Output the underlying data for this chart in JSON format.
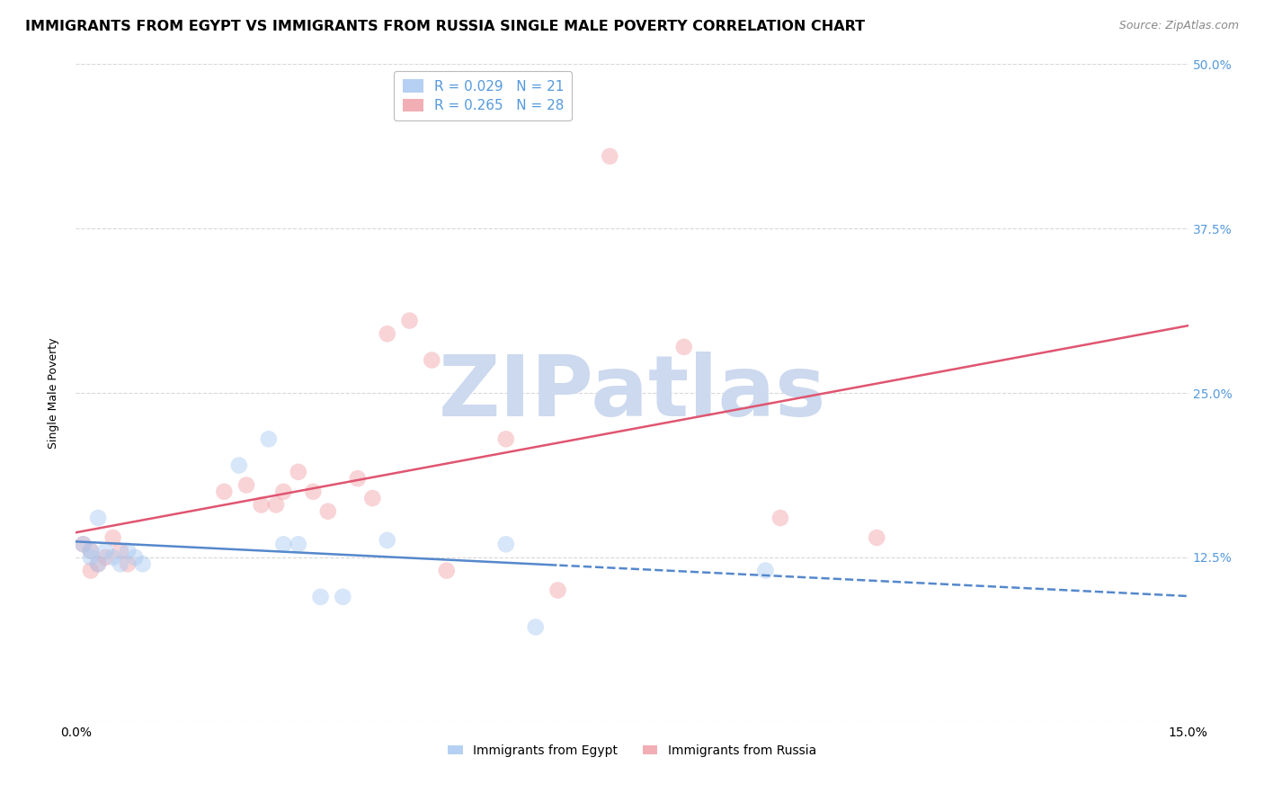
{
  "title": "IMMIGRANTS FROM EGYPT VS IMMIGRANTS FROM RUSSIA SINGLE MALE POVERTY CORRELATION CHART",
  "source": "Source: ZipAtlas.com",
  "ylabel": "Single Male Poverty",
  "xlim": [
    0.0,
    0.15
  ],
  "ylim": [
    0.0,
    0.5
  ],
  "yticks": [
    0.0,
    0.125,
    0.25,
    0.375,
    0.5
  ],
  "yticklabels": [
    "",
    "12.5%",
    "25.0%",
    "37.5%",
    "50.0%"
  ],
  "egypt_color": "#a8c8f0",
  "russia_color": "#f0a0a8",
  "egypt_R": 0.029,
  "egypt_N": 21,
  "russia_R": 0.265,
  "russia_N": 28,
  "egypt_x": [
    0.001,
    0.002,
    0.002,
    0.003,
    0.003,
    0.004,
    0.005,
    0.006,
    0.007,
    0.008,
    0.009,
    0.022,
    0.026,
    0.028,
    0.03,
    0.033,
    0.036,
    0.042,
    0.058,
    0.062,
    0.093
  ],
  "egypt_y": [
    0.135,
    0.13,
    0.125,
    0.12,
    0.155,
    0.13,
    0.125,
    0.12,
    0.13,
    0.125,
    0.12,
    0.195,
    0.215,
    0.135,
    0.135,
    0.095,
    0.095,
    0.138,
    0.135,
    0.072,
    0.115
  ],
  "russia_x": [
    0.001,
    0.002,
    0.002,
    0.003,
    0.004,
    0.005,
    0.006,
    0.007,
    0.02,
    0.023,
    0.025,
    0.027,
    0.028,
    0.03,
    0.032,
    0.034,
    0.038,
    0.04,
    0.042,
    0.045,
    0.048,
    0.05,
    0.058,
    0.065,
    0.072,
    0.082,
    0.095,
    0.108
  ],
  "russia_y": [
    0.135,
    0.13,
    0.115,
    0.12,
    0.125,
    0.14,
    0.13,
    0.12,
    0.175,
    0.18,
    0.165,
    0.165,
    0.175,
    0.19,
    0.175,
    0.16,
    0.185,
    0.17,
    0.295,
    0.305,
    0.275,
    0.115,
    0.215,
    0.1,
    0.43,
    0.285,
    0.155,
    0.14
  ],
  "background_color": "#ffffff",
  "grid_color": "#d8d8d8",
  "watermark_text": "ZIPatlas",
  "watermark_color": "#ccd9ee",
  "legend_egypt_label": "Immigrants from Egypt",
  "legend_russia_label": "Immigrants from Russia",
  "title_fontsize": 11.5,
  "source_fontsize": 9,
  "axis_label_fontsize": 9,
  "tick_fontsize": 10,
  "legend_fontsize": 11,
  "marker_size": 180,
  "marker_alpha": 0.45,
  "line_color_egypt": "#5588cc",
  "line_color_russia": "#e05570",
  "line_width": 1.8,
  "tick_color": "#5599dd"
}
